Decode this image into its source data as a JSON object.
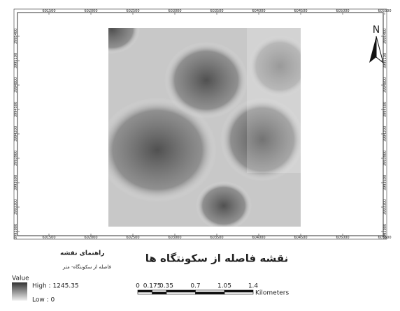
{
  "map": {
    "title": "نقشه فاصله از سکونتگاه ها",
    "x_labels": [
      "601500",
      "602000",
      "602500",
      "603000",
      "603500",
      "604000",
      "604500",
      "605000",
      "605500"
    ],
    "y_labels": [
      "3995400",
      "3995100",
      "3994800",
      "3994500",
      "3994200",
      "3993900",
      "3993600",
      "3993300",
      "3993000"
    ],
    "north": "N",
    "legend": {
      "heading": "راهنمای نقشه",
      "layer": "فاصله از سکونتگاه- متر",
      "field": "Value",
      "high": "High : 1245.35",
      "low": "Low : 0"
    },
    "scale_bar": {
      "labels": [
        "0",
        "0.175",
        "0.35",
        "0.7",
        "1.05",
        "1.4"
      ],
      "unit": "Kilometers"
    }
  }
}
